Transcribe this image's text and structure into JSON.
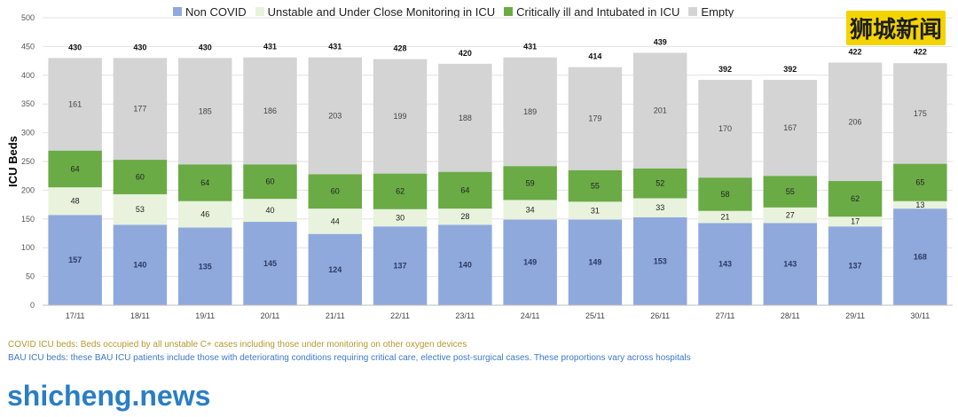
{
  "chart_data": {
    "type": "bar",
    "stacked": true,
    "ylabel": "ICU Beds",
    "ylim": [
      0,
      500
    ],
    "yticks": [
      0,
      50,
      100,
      150,
      200,
      250,
      300,
      350,
      400,
      450,
      500
    ],
    "grid": true,
    "legend_position": "top",
    "categories": [
      "17/11",
      "18/11",
      "19/11",
      "20/11",
      "21/11",
      "22/11",
      "23/11",
      "24/11",
      "25/11",
      "26/11",
      "27/11",
      "28/11",
      "29/11",
      "30/11"
    ],
    "totals": [
      430,
      430,
      430,
      431,
      431,
      428,
      420,
      431,
      414,
      439,
      392,
      392,
      422,
      422
    ],
    "series": [
      {
        "name": "Non COVID",
        "color": "#8fa9dc",
        "values": [
          157,
          140,
          135,
          145,
          124,
          137,
          140,
          149,
          149,
          153,
          143,
          143,
          137,
          168
        ]
      },
      {
        "name": "Unstable and Under Close Monitoring in ICU",
        "color": "#e8f2dd",
        "values": [
          48,
          53,
          46,
          40,
          44,
          30,
          28,
          34,
          31,
          33,
          21,
          27,
          17,
          13
        ]
      },
      {
        "name": "Critically ill and Intubated in ICU",
        "color": "#6aab45",
        "values": [
          64,
          60,
          64,
          60,
          60,
          62,
          64,
          59,
          55,
          52,
          58,
          55,
          62,
          65
        ]
      },
      {
        "name": "Empty",
        "color": "#d4d4d4",
        "values": [
          161,
          177,
          185,
          186,
          203,
          199,
          188,
          189,
          179,
          201,
          170,
          167,
          206,
          175
        ]
      }
    ]
  },
  "notes": {
    "covid": "COVID ICU beds: Beds occupied by all unstable C+ cases including those under monitoring on other oxygen devices",
    "bau": "BAU ICU beds: these BAU ICU patients include those with deteriorating conditions requiring critical care, elective post-surgical cases. These proportions vary across hospitals"
  },
  "watermark": {
    "site": "shicheng.news",
    "chinese": "狮城新闻"
  }
}
